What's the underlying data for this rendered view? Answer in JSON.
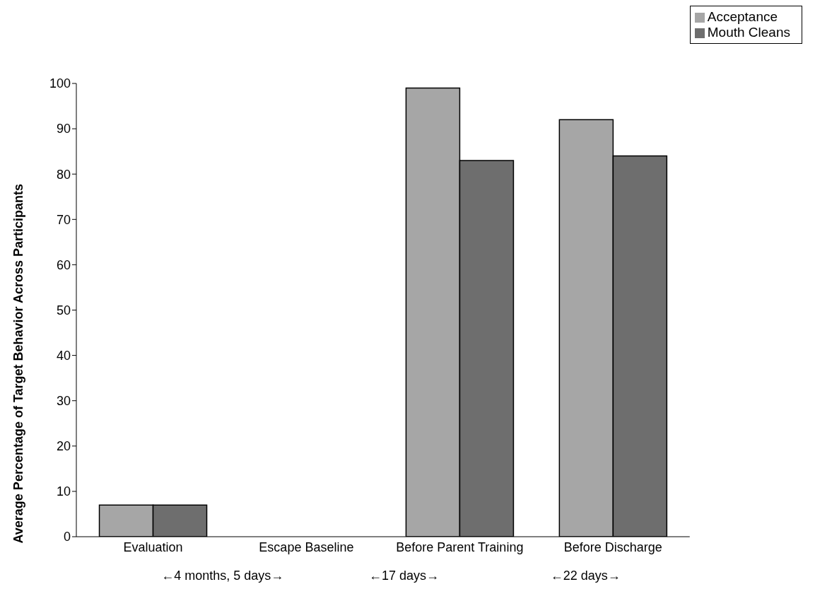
{
  "chart_data": {
    "type": "bar",
    "ylabel": "Average Percentage of Target Behavior Across Participants",
    "categories": [
      "Evaluation",
      "Escape Baseline",
      "Before Parent Training",
      "Before Discharge"
    ],
    "series": [
      {
        "name": "Acceptance",
        "color": "#a6a6a6",
        "values": [
          7,
          0,
          99,
          92
        ]
      },
      {
        "name": "Mouth Cleans",
        "color": "#6e6e6e",
        "values": [
          7,
          0,
          83,
          84
        ]
      }
    ],
    "ylim": [
      0,
      100
    ],
    "yticks": [
      0,
      10,
      20,
      30,
      40,
      50,
      60,
      70,
      80,
      90,
      100
    ],
    "grid": false,
    "legend": "top right",
    "annotations": [
      "←4 months, 5 days→",
      "←17 days→",
      "←22 days→"
    ]
  }
}
